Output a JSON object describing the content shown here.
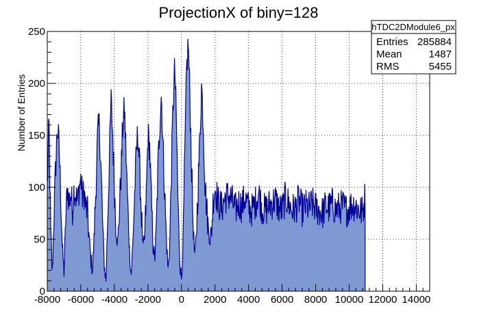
{
  "chart_data": {
    "type": "bar",
    "title": "ProjectionX of biny=128",
    "xlabel": "",
    "ylabel": "Number of Entries",
    "xlim": [
      -8000,
      14800
    ],
    "ylim": [
      0,
      250
    ],
    "xticks": [
      -8000,
      -6000,
      -4000,
      -2000,
      0,
      2000,
      4000,
      6000,
      8000,
      10000,
      12000,
      14000
    ],
    "yticks": [
      0,
      50,
      100,
      150,
      200,
      250
    ],
    "grid": true,
    "fill_color": "#7f9ad2",
    "line_color": "#000099",
    "series": [
      {
        "values_x": [
          -8000,
          -7900,
          -7800,
          -7700,
          -7600,
          -7500,
          -7400,
          -7300,
          -7200,
          -7100,
          -7000,
          -6900,
          -6800,
          -6700,
          -6600,
          -6500,
          -6400,
          -6300,
          -6200,
          -6100,
          -6000,
          -5900,
          -5800,
          -5700,
          -5600,
          -5500,
          -5400,
          -5300,
          -5200,
          -5100,
          -5000,
          -4900,
          -4800,
          -4700,
          -4600,
          -4500,
          -4400,
          -4300,
          -4200,
          -4100,
          -4000,
          -3900,
          -3800,
          -3700,
          -3600,
          -3500,
          -3400,
          -3300,
          -3200,
          -3100,
          -3000,
          -2900,
          -2800,
          -2700,
          -2600,
          -2500,
          -2400,
          -2300,
          -2200,
          -2100,
          -2000,
          -1900,
          -1800,
          -1700,
          -1600,
          -1500,
          -1400,
          -1300,
          -1200,
          -1100,
          -1000,
          -900,
          -800,
          -700,
          -600,
          -500,
          -400,
          -300,
          -200,
          -100,
          0,
          100,
          200,
          300,
          400,
          500,
          600,
          700,
          800,
          900,
          1000,
          1100,
          1200,
          1300,
          1400,
          1500,
          1600,
          1700,
          1800,
          1900,
          2000,
          2200,
          2400,
          2600,
          2800,
          3000,
          3200,
          3400,
          3600,
          3800,
          4000,
          4200,
          4400,
          4600,
          4800,
          5000,
          5200,
          5400,
          5600,
          5800,
          6000,
          6200,
          6400,
          6600,
          6800,
          7000,
          7200,
          7400,
          7600,
          7800,
          8000,
          8200,
          8400,
          8600,
          8800,
          9000,
          9200,
          9400,
          9600,
          9800,
          10000,
          10200,
          10400,
          10600,
          10800,
          10950,
          11000
        ],
        "values_y": [
          100,
          162,
          60,
          15,
          75,
          120,
          158,
          140,
          95,
          40,
          18,
          70,
          100,
          85,
          95,
          78,
          100,
          92,
          85,
          100,
          108,
          90,
          95,
          80,
          75,
          50,
          30,
          20,
          55,
          100,
          150,
          160,
          120,
          65,
          25,
          10,
          70,
          125,
          185,
          150,
          100,
          60,
          45,
          80,
          115,
          160,
          175,
          130,
          80,
          40,
          15,
          45,
          90,
          130,
          155,
          120,
          80,
          40,
          50,
          90,
          150,
          140,
          90,
          45,
          30,
          60,
          120,
          160,
          190,
          140,
          95,
          50,
          20,
          45,
          115,
          180,
          215,
          160,
          80,
          30,
          10,
          50,
          130,
          210,
          240,
          190,
          120,
          60,
          30,
          60,
          105,
          150,
          200,
          160,
          105,
          80,
          60,
          50,
          60,
          90,
          100,
          85,
          80,
          90,
          92,
          88,
          78,
          85,
          82,
          90,
          80,
          78,
          85,
          95,
          80,
          78,
          82,
          85,
          88,
          80,
          78,
          90,
          84,
          78,
          80,
          88,
          78,
          82,
          80,
          84,
          80,
          78,
          75,
          82,
          80,
          84,
          78,
          80,
          82,
          78,
          80,
          84,
          82,
          78,
          76,
          92,
          0
        ]
      }
    ]
  },
  "stats_box": {
    "title": "hTDC2DModule6_px",
    "rows": [
      {
        "label": "Entries",
        "value": "285884"
      },
      {
        "label": "Mean",
        "value": "1487"
      },
      {
        "label": "RMS",
        "value": "5455"
      }
    ]
  }
}
